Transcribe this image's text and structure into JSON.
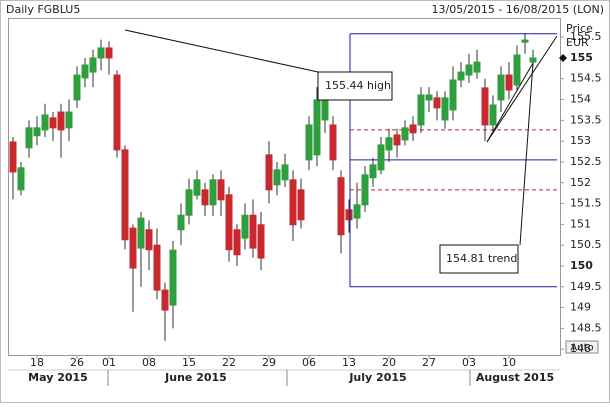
{
  "chart_data": {
    "type": "candlestick",
    "title": "Daily FGBLU5",
    "subtitle": "13/05/2015 - 16/08/2015 (LON)",
    "y_axis_label": [
      "Price",
      "EUR"
    ],
    "button": "Auto",
    "categories": [
      null,
      null,
      null,
      "18",
      null,
      null,
      null,
      null,
      "26",
      null,
      null,
      null,
      "01",
      null,
      null,
      null,
      null,
      "08",
      null,
      null,
      null,
      null,
      "15",
      null,
      null,
      null,
      null,
      "22",
      null,
      null,
      null,
      null,
      "29",
      null,
      null,
      null,
      null,
      "06",
      null,
      null,
      null,
      null,
      "13",
      null,
      null,
      null,
      null,
      "20",
      null,
      null,
      null,
      null,
      "27",
      null,
      null,
      null,
      null,
      "03",
      null,
      null,
      null,
      null,
      "10",
      null,
      null,
      null
    ],
    "months": [
      "May 2015",
      "June 2015",
      "July 2015",
      "August 2015"
    ],
    "open": [
      152.98,
      151.83,
      152.84,
      153.13,
      153.27,
      153.56,
      153.7,
      153.32,
      153.99,
      154.52,
      154.66,
      155,
      155.24,
      154.59,
      152.79,
      150.91,
      150.43,
      150.87,
      150.5,
      149.42,
      149.06,
      150.87,
      151.22,
      151.7,
      151.83,
      151.47,
      152.07,
      151.71,
      150.87,
      150.67,
      151.22,
      150.99,
      152.67,
      151.95,
      152.07,
      152.07,
      151.83,
      152.55,
      152.67,
      153.51,
      153.39,
      152.12,
      151.35,
      151.15,
      151.47,
      152.12,
      152.31,
      152.79,
      153.15,
      153.03,
      153.39,
      153.39,
      153.99,
      154.04,
      153.51,
      153.75,
      154.47,
      154.59,
      154.66,
      154.28,
      153.39,
      153.99,
      154.59,
      154.35,
      155.38,
      154.9
    ],
    "high": [
      153.1,
      152.5,
      153.5,
      153.6,
      153.9,
      153.7,
      153.9,
      154.0,
      154.8,
      155.0,
      155.2,
      155.44,
      155.4,
      154.7,
      152.9,
      151.0,
      151.3,
      151.1,
      150.9,
      149.6,
      150.6,
      151.5,
      152.1,
      152.3,
      152.0,
      152.2,
      152.3,
      151.9,
      151.0,
      151.5,
      151.6,
      151.3,
      153.0,
      152.5,
      152.7,
      152.3,
      152.1,
      153.6,
      154.3,
      154.2,
      153.6,
      152.3,
      151.6,
      152.0,
      152.4,
      152.6,
      153.1,
      153.3,
      153.3,
      153.5,
      153.6,
      154.3,
      154.3,
      154.2,
      154.2,
      154.8,
      154.9,
      155.1,
      155.2,
      154.5,
      154.1,
      154.8,
      154.9,
      155.3,
      155.6,
      155.2
    ],
    "low": [
      151.6,
      151.7,
      152.6,
      152.9,
      153.1,
      153.0,
      152.6,
      153.0,
      153.8,
      154.3,
      154.3,
      154.7,
      154.6,
      152.6,
      150.4,
      148.9,
      149.5,
      149.9,
      149.2,
      148.2,
      148.5,
      150.5,
      151.0,
      151.6,
      151.2,
      151.2,
      151.2,
      150.1,
      150.0,
      150.4,
      150.2,
      149.9,
      151.5,
      151.7,
      151.9,
      150.6,
      150.9,
      152.3,
      152.4,
      153.2,
      152.3,
      150.3,
      150.8,
      150.9,
      151.3,
      151.9,
      152.2,
      152.5,
      152.6,
      152.9,
      153.0,
      153.2,
      153.7,
      153.5,
      153.3,
      153.5,
      154.3,
      154.4,
      154.5,
      153.0,
      153.2,
      153.7,
      154.0,
      154.2,
      155.1,
      154.8
    ],
    "close": [
      152.26,
      152.36,
      153.32,
      153.32,
      153.63,
      153.32,
      153.27,
      153.7,
      154.59,
      154.83,
      155,
      155.24,
      155,
      152.79,
      150.63,
      149.95,
      151.15,
      150.39,
      149.42,
      148.94,
      150.38,
      151.22,
      151.83,
      152.07,
      151.47,
      152.07,
      151.59,
      150.39,
      150.27,
      151.22,
      150.43,
      150.19,
      151.83,
      152.31,
      152.43,
      150.99,
      151.11,
      153.39,
      153.99,
      153.99,
      152.55,
      150.75,
      151.11,
      151.47,
      152.19,
      152.43,
      152.91,
      153.08,
      152.91,
      153.32,
      153.2,
      154.11,
      154.11,
      153.8,
      154.04,
      154.47,
      154.66,
      154.83,
      154.9,
      153.39,
      153.87,
      154.59,
      154.23,
      155.07,
      155.43,
      155
    ],
    "up_color": "#2e9e3e",
    "down_color": "#c8282e",
    "ylim": [
      147.86,
      155.96
    ],
    "yticks": [
      148,
      148.5,
      149,
      149.5,
      150,
      150.5,
      151,
      151.5,
      152,
      152.5,
      153,
      153.5,
      154,
      154.5,
      155,
      155.5
    ],
    "last_price": 155,
    "levels": [
      {
        "value": 155.58,
        "color": "#1a1aa0",
        "dash": false
      },
      {
        "value": 153.27,
        "color": "#c8282e",
        "dash": true
      },
      {
        "value": 152.55,
        "color": "#1a1aa0",
        "dash": false
      },
      {
        "value": 151.83,
        "color": "#c8282e",
        "dash": true
      },
      {
        "value": 149.5,
        "color": "#1a1aa0",
        "dash": false
      }
    ],
    "annotations": [
      "155.44 high",
      "154.81 trend"
    ],
    "grid": false
  }
}
